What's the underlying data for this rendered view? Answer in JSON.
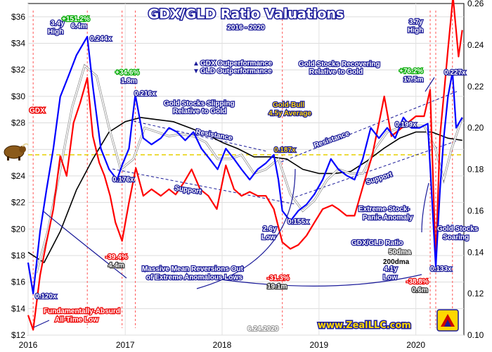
{
  "chart_data": {
    "type": "line",
    "title": "GDX/GLD Ratio Valuations",
    "subtitle": "2016 - 2020",
    "date_stamp": "6.24.2020",
    "watermark": "www.ZealLLC.com",
    "x_ticks": [
      "2016",
      "2017",
      "2018",
      "2019",
      "2020"
    ],
    "x_range": [
      "2016-01-01",
      "2020-06-30"
    ],
    "y_left": {
      "ticks": [
        "$12",
        "$14",
        "$16",
        "$18",
        "$20",
        "$22",
        "$24",
        "$26",
        "$28",
        "$30",
        "$32",
        "$34",
        "$36"
      ],
      "range": [
        12,
        37
      ]
    },
    "y_right": {
      "ticks": [
        "0.10",
        "0.12",
        "0.14",
        "0.16",
        "0.18",
        "0.20",
        "0.22",
        "0.24",
        "0.26"
      ],
      "range": [
        0.1,
        0.26
      ]
    },
    "gold_bull_average": 0.187,
    "series": [
      {
        "name": "GDX",
        "axis": "left",
        "color": "#ff0000",
        "x": [
          "2016-01-01",
          "2016-01-20",
          "2016-02-15",
          "2016-03-10",
          "2016-04-05",
          "2016-05-01",
          "2016-05-25",
          "2016-06-20",
          "2016-07-15",
          "2016-08-11",
          "2016-09-01",
          "2016-09-25",
          "2016-10-15",
          "2016-11-05",
          "2016-11-25",
          "2016-12-20",
          "2017-01-15",
          "2017-02-10",
          "2017-03-10",
          "2017-04-10",
          "2017-05-15",
          "2017-06-15",
          "2017-07-10",
          "2017-08-10",
          "2017-09-08",
          "2017-10-10",
          "2017-11-10",
          "2017-12-12",
          "2018-01-15",
          "2018-02-15",
          "2018-03-15",
          "2018-04-15",
          "2018-05-15",
          "2018-06-15",
          "2018-07-15",
          "2018-08-16",
          "2018-09-15",
          "2018-10-15",
          "2018-11-15",
          "2018-12-15",
          "2019-01-15",
          "2019-02-20",
          "2019-03-15",
          "2019-04-15",
          "2019-05-15",
          "2019-06-20",
          "2019-07-20",
          "2019-08-20",
          "2019-09-04",
          "2019-10-01",
          "2019-11-01",
          "2019-12-01",
          "2020-01-01",
          "2020-02-01",
          "2020-02-24",
          "2020-03-16",
          "2020-04-01",
          "2020-04-15",
          "2020-05-01",
          "2020-05-20",
          "2020-06-10",
          "2020-06-24"
        ],
        "y": [
          13.5,
          12.4,
          16.5,
          19.0,
          21.5,
          25.5,
          24.0,
          28.0,
          29.5,
          31.4,
          27.0,
          25.0,
          24.0,
          22.5,
          20.5,
          19.1,
          22.0,
          24.6,
          22.5,
          23.0,
          22.5,
          23.0,
          22.6,
          23.5,
          24.5,
          23.0,
          22.5,
          21.5,
          24.8,
          23.0,
          22.5,
          22.8,
          22.5,
          22.5,
          21.5,
          19.0,
          18.5,
          18.8,
          19.5,
          20.5,
          21.5,
          21.8,
          21.5,
          21.0,
          21.0,
          23.5,
          25.5,
          28.5,
          30.0,
          27.0,
          27.5,
          28.0,
          28.5,
          28.5,
          30.5,
          17.5,
          27.0,
          30.0,
          33.5,
          37.5,
          33.0,
          35.0
        ]
      },
      {
        "name": "GDX/GLD Ratio",
        "axis": "right",
        "color": "#0000ff",
        "x": [
          "2016-01-01",
          "2016-01-20",
          "2016-02-15",
          "2016-03-10",
          "2016-04-05",
          "2016-05-01",
          "2016-06-01",
          "2016-07-01",
          "2016-08-11",
          "2016-09-01",
          "2016-10-01",
          "2016-11-01",
          "2016-12-01",
          "2016-12-20",
          "2017-01-15",
          "2017-02-08",
          "2017-03-10",
          "2017-04-10",
          "2017-05-15",
          "2017-06-15",
          "2017-07-15",
          "2017-08-15",
          "2017-09-15",
          "2017-10-15",
          "2017-11-15",
          "2017-12-15",
          "2018-01-15",
          "2018-02-15",
          "2018-03-15",
          "2018-04-15",
          "2018-05-15",
          "2018-06-15",
          "2018-07-15",
          "2018-08-01",
          "2018-08-16",
          "2018-09-15",
          "2018-10-15",
          "2018-11-15",
          "2018-12-15",
          "2019-01-15",
          "2019-02-15",
          "2019-03-15",
          "2019-04-15",
          "2019-05-15",
          "2019-06-15",
          "2019-07-15",
          "2019-08-15",
          "2019-09-15",
          "2019-10-15",
          "2019-11-15",
          "2019-12-15",
          "2020-01-15",
          "2020-02-15",
          "2020-03-16",
          "2020-04-01",
          "2020-04-15",
          "2020-05-01",
          "2020-05-18",
          "2020-06-01",
          "2020-06-24"
        ],
        "y": [
          0.135,
          0.12,
          0.15,
          0.17,
          0.19,
          0.215,
          0.225,
          0.235,
          0.244,
          0.22,
          0.19,
          0.18,
          0.175,
          0.182,
          0.19,
          0.216,
          0.195,
          0.192,
          0.195,
          0.2,
          0.198,
          0.194,
          0.198,
          0.19,
          0.185,
          0.18,
          0.19,
          0.185,
          0.18,
          0.175,
          0.18,
          0.183,
          0.187,
          0.175,
          0.16,
          0.155,
          0.16,
          0.163,
          0.168,
          0.175,
          0.185,
          0.18,
          0.177,
          0.175,
          0.185,
          0.2,
          0.195,
          0.2,
          0.195,
          0.205,
          0.2,
          0.2,
          0.202,
          0.133,
          0.17,
          0.195,
          0.215,
          0.227,
          0.2,
          0.205
        ]
      },
      {
        "name": "50dma",
        "axis": "right",
        "color": "#ffffff",
        "x": [
          "2016-02-01",
          "2016-03-15",
          "2016-05-01",
          "2016-06-15",
          "2016-08-01",
          "2016-09-15",
          "2016-11-01",
          "2016-12-15",
          "2017-02-01",
          "2017-03-15",
          "2017-05-01",
          "2017-06-15",
          "2017-08-01",
          "2017-09-15",
          "2017-11-01",
          "2017-12-15",
          "2018-02-01",
          "2018-03-15",
          "2018-05-01",
          "2018-06-15",
          "2018-08-01",
          "2018-09-15",
          "2018-11-01",
          "2018-12-15",
          "2019-02-01",
          "2019-03-15",
          "2019-05-01",
          "2019-06-15",
          "2019-08-01",
          "2019-09-15",
          "2019-11-01",
          "2019-12-15",
          "2020-02-01",
          "2020-03-15",
          "2020-04-15",
          "2020-05-15",
          "2020-06-24"
        ],
        "y": [
          0.13,
          0.15,
          0.18,
          0.21,
          0.23,
          0.225,
          0.2,
          0.18,
          0.185,
          0.2,
          0.198,
          0.196,
          0.197,
          0.196,
          0.193,
          0.185,
          0.185,
          0.187,
          0.178,
          0.18,
          0.185,
          0.168,
          0.16,
          0.165,
          0.175,
          0.18,
          0.178,
          0.178,
          0.19,
          0.198,
          0.2,
          0.201,
          0.201,
          0.19,
          0.175,
          0.19,
          0.205
        ]
      },
      {
        "name": "200dma",
        "axis": "right",
        "color": "#000000",
        "x": [
          "2016-01-01",
          "2016-03-01",
          "2016-05-01",
          "2016-07-01",
          "2016-09-01",
          "2016-11-01",
          "2017-01-01",
          "2017-03-01",
          "2017-05-01",
          "2017-07-01",
          "2017-09-01",
          "2017-11-01",
          "2018-01-01",
          "2018-03-01",
          "2018-05-01",
          "2018-07-01",
          "2018-09-01",
          "2018-11-01",
          "2019-01-01",
          "2019-03-01",
          "2019-05-01",
          "2019-07-01",
          "2019-09-01",
          "2019-11-01",
          "2020-01-01",
          "2020-03-01",
          "2020-05-01",
          "2020-06-24"
        ],
        "y": [
          0.14,
          0.135,
          0.15,
          0.17,
          0.185,
          0.198,
          0.203,
          0.205,
          0.204,
          0.203,
          0.2,
          0.197,
          0.193,
          0.19,
          0.186,
          0.186,
          0.185,
          0.18,
          0.178,
          0.178,
          0.179,
          0.184,
          0.19,
          0.195,
          0.198,
          0.198,
          0.195,
          0.194
        ]
      }
    ],
    "annotations": {
      "gdx_label": "GDX",
      "h1_title": "3.4y",
      "h1_title2": "High",
      "h1_pct": "+151.2%",
      "h1_dur": "6.4m",
      "h1_val": "0.244x",
      "h2_pct": "+34.6%",
      "h2_dur": "1.8m",
      "h2_val": "0.216x",
      "h3_title": "3.7y",
      "h3_title2": "High",
      "h3_pct": "+76.2%",
      "h3_dur": "17.5m",
      "h3_val": "0.227x",
      "outperf_gdx": "GDX Outperformance",
      "outperf_gld": "GLD Outperformance",
      "recover1": "Gold Stocks Recovering",
      "recover2": "Relative to Gold",
      "slip1": "Gold Stocks Slipping",
      "slip2": "Relative to Gold",
      "resistance": "Resistance",
      "support": "Support",
      "gold_bull1": "Gold-Bull",
      "gold_bull2": "4.5y Average",
      "v0187": "0.187x",
      "v0176": "0.176x",
      "v0199": "0.199x",
      "v0155": "0.155x",
      "v0120": "0.120x",
      "v0133": "0.133x",
      "low26_1": "2.6y",
      "low26_2": "Low",
      "low41_1": "4.1y",
      "low41_2": "Low",
      "panic1": "Extreme Stock-",
      "panic2": "Panic Anomaly",
      "soar1": "Gold Stocks",
      "soar2": "Soaring",
      "ratio_label": "GDX/GLD Ratio",
      "dma50_label": "50dma",
      "dma200_label": "200dma",
      "d394_pct": "-39.4%",
      "d394_dur": "4.4m",
      "d313_pct": "-31.3%",
      "d313_dur": "19.1m",
      "d388_pct": "-38.8%",
      "d388_dur": "0.6m",
      "reversion1": "Massive Mean Reversions Out",
      "reversion2": "of Extreme Anomalous Lows",
      "absurd1": "Fundamentally-Absurd",
      "absurd2": "All-Time Low"
    },
    "colors": {
      "background": "#ffffff",
      "plot_bg": "#ffffff",
      "grid": "#d0d0d0",
      "navy": "#1a1a99",
      "green": "#00aa00",
      "gold": "#ffd700",
      "dash_red": "#ff4444"
    }
  }
}
